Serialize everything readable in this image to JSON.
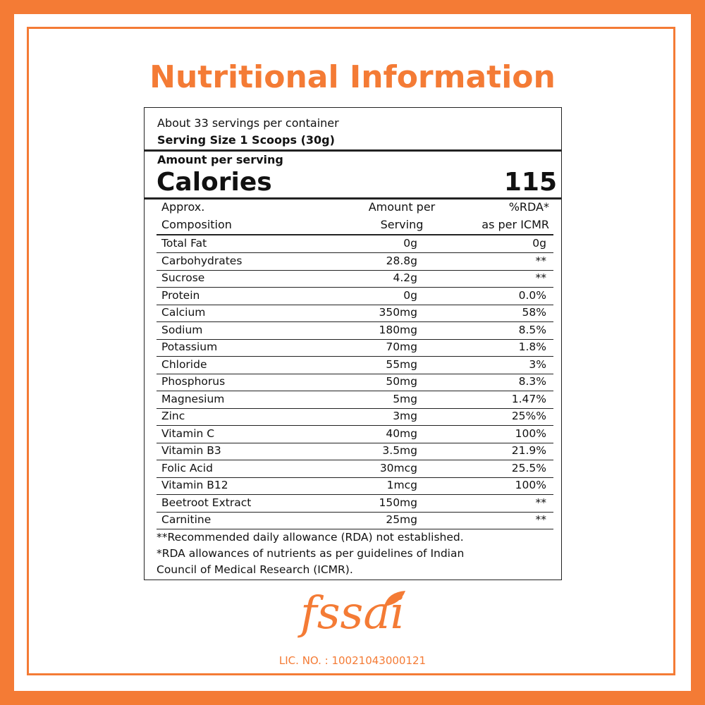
{
  "title": "Nutritional Information",
  "header": {
    "servings": "About 33 servings per container",
    "serving_size": "Serving Size  1 Scoops (30g)",
    "amount_per_serving": "Amount per serving",
    "calories_label": "Calories",
    "calories": 115
  },
  "table": {
    "columns": [
      [
        "Approx.",
        "Composition"
      ],
      [
        "Amount per",
        "Serving"
      ],
      [
        "%RDA*",
        "as per ICMR"
      ]
    ],
    "rows": [
      [
        "Total Fat",
        "0g",
        "0g"
      ],
      [
        "Carbohydrates",
        "28.8g",
        "**"
      ],
      [
        "Sucrose",
        "4.2g",
        "**"
      ],
      [
        "Protein",
        "0g",
        "0.0%"
      ],
      [
        "Calcium",
        "350mg",
        "58%"
      ],
      [
        "Sodium",
        "180mg",
        "8.5%"
      ],
      [
        "Potassium",
        "70mg",
        "1.8%"
      ],
      [
        "Chloride",
        "55mg",
        "3%"
      ],
      [
        "Phosphorus",
        "50mg",
        "8.3%"
      ],
      [
        "Magnesium",
        "5mg",
        "1.47%"
      ],
      [
        "Zinc",
        "3mg",
        "25%%"
      ],
      [
        "Vitamin C",
        "40mg",
        "100%"
      ],
      [
        "Vitamin B3",
        "3.5mg",
        "21.9%"
      ],
      [
        "Folic Acid",
        "30mcg",
        "25.5%"
      ],
      [
        "Vitamin B12",
        "1mcg",
        "100%"
      ],
      [
        "Beetroot Extract",
        "150mg",
        "**"
      ],
      [
        "Carnitine",
        "25mg",
        "**"
      ]
    ]
  },
  "footnotes": [
    "**Recommended daily allowance (RDA) not established.",
    "*RDA allowances of nutrients as per guidelines of Indian",
    "Council of Medical Research (ICMR)."
  ],
  "logo": "fssai",
  "license": "LIC. NO. : 10021043000121"
}
